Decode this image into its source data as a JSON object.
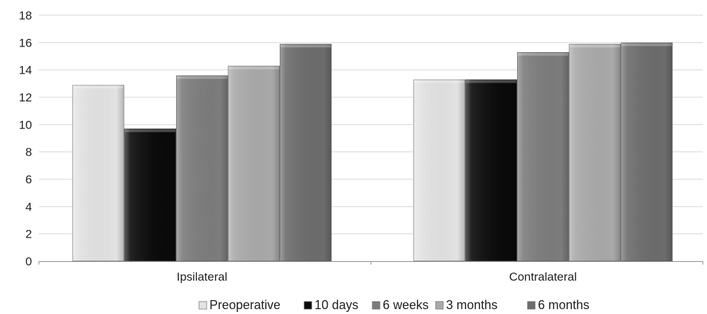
{
  "chart_data": {
    "type": "bar",
    "categories": [
      "Ipsilateral",
      "Contralateral"
    ],
    "series": [
      {
        "name": "Preoperative",
        "values": [
          12.9,
          13.3
        ],
        "color": "#e2e2e2"
      },
      {
        "name": "10 days",
        "values": [
          9.7,
          13.3
        ],
        "color": "#0a0a0a"
      },
      {
        "name": "6 weeks",
        "values": [
          13.6,
          15.3
        ],
        "color": "#7c7c7c"
      },
      {
        "name": "3 months",
        "values": [
          14.3,
          15.9
        ],
        "color": "#a9a9a9"
      },
      {
        "name": "6 months",
        "values": [
          15.9,
          16.0
        ],
        "color": "#6c6c6c"
      }
    ],
    "ylim": [
      0,
      18
    ],
    "yticks": [
      "0",
      "2",
      "4",
      "6",
      "8",
      "10",
      "12",
      "14",
      "16",
      "18"
    ],
    "grid": true,
    "legend_position": "bottom"
  }
}
